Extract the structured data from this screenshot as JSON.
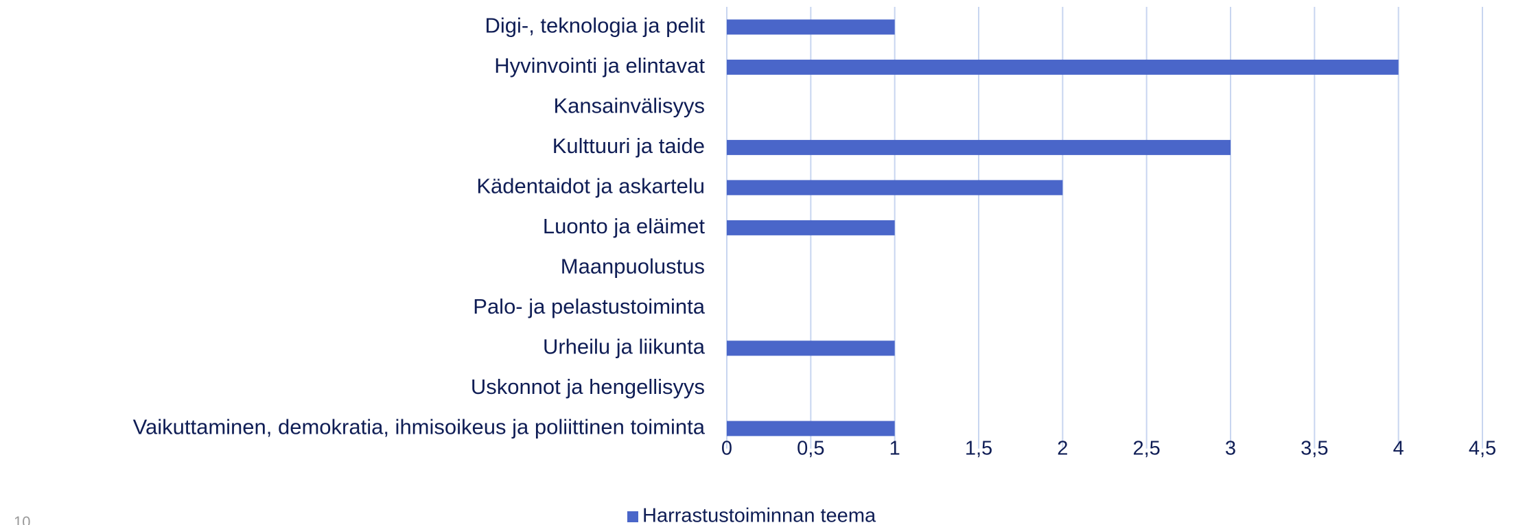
{
  "chart_data": {
    "type": "bar",
    "orientation": "horizontal",
    "categories": [
      "Digi-, teknologia ja pelit",
      "Hyvinvointi ja elintavat",
      "Kansainvälisyys",
      "Kulttuuri ja taide",
      "Kädentaidot ja askartelu",
      "Luonto ja eläimet",
      "Maanpuolustus",
      "Palo- ja pelastustoiminta",
      "Urheilu ja liikunta",
      "Uskonnot ja hengellisyys",
      "Vaikuttaminen, demokratia, ihmisoikeus ja poliittinen toiminta"
    ],
    "series": [
      {
        "name": "Harrastustoiminnan teema",
        "color": "#4a66c9",
        "values": [
          1,
          4,
          0,
          3,
          2,
          1,
          0,
          0,
          1,
          0,
          1
        ]
      }
    ],
    "xlim": [
      0,
      4.5
    ],
    "xticks": [
      0,
      {
        "value": 0.5,
        "label": "0,5"
      },
      1,
      {
        "value": 1.5,
        "label": "1,5"
      },
      2,
      {
        "value": 2.5,
        "label": "2,5"
      },
      3,
      {
        "value": 3.5,
        "label": "3,5"
      },
      4,
      {
        "value": 4.5,
        "label": "4,5"
      }
    ],
    "grid": true,
    "legend": "bottom"
  },
  "page_number": "10"
}
